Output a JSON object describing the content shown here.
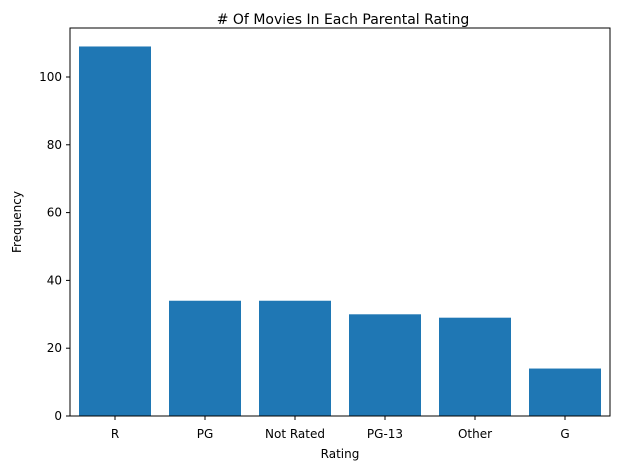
{
  "chart_data": {
    "type": "bar",
    "title": "# Of Movies In Each Parental Rating",
    "xlabel": "Rating",
    "ylabel": "Frequency",
    "categories": [
      "R",
      "PG",
      "Not Rated",
      "PG-13",
      "Other",
      "G"
    ],
    "values": [
      109,
      34,
      34,
      30,
      29,
      14
    ],
    "ylim": [
      0,
      114.45
    ],
    "yticks": [
      0,
      20,
      40,
      60,
      80,
      100
    ],
    "ytick_labels": [
      "0",
      "20",
      "40",
      "60",
      "80",
      "100"
    ],
    "bar_color": "#1f77b4",
    "grid": false,
    "legend": "none"
  }
}
